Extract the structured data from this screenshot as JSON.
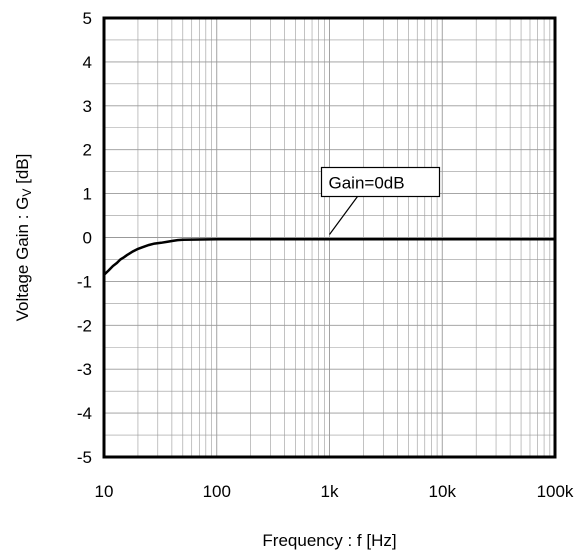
{
  "chart_data": {
    "type": "line",
    "xscale": "log",
    "xlim": [
      10,
      100000
    ],
    "ylim": [
      -5,
      5
    ],
    "xlabel": "Frequency : f [Hz]",
    "ylabel_main": "Voltage Gain : G",
    "ylabel_sub": "V",
    "ylabel_unit": " [dB]",
    "xticks": [
      10,
      100,
      1000,
      10000,
      100000
    ],
    "xtick_labels": [
      "10",
      "100",
      "1k",
      "10k",
      "100k"
    ],
    "yticks": [
      -5,
      -4,
      -3,
      -2,
      -1,
      0,
      1,
      2,
      3,
      4,
      5
    ],
    "ytick_labels": [
      "-5",
      "-4",
      "-3",
      "-2",
      "-1",
      "0",
      "1",
      "2",
      "3",
      "4",
      "5"
    ],
    "grid": true,
    "annotation": {
      "text": "Gain=0dB",
      "x": 1000,
      "y": 0
    },
    "series": [
      {
        "x": [
          10,
          11,
          12,
          13,
          14,
          15,
          16,
          18,
          20,
          22,
          25,
          28,
          32,
          36,
          40,
          45,
          50,
          100,
          1000,
          10000,
          100000
        ],
        "y": [
          -0.85,
          -0.75,
          -0.65,
          -0.58,
          -0.5,
          -0.45,
          -0.4,
          -0.32,
          -0.26,
          -0.22,
          -0.17,
          -0.14,
          -0.12,
          -0.1,
          -0.08,
          -0.06,
          -0.05,
          -0.04,
          -0.04,
          -0.04,
          -0.04
        ]
      }
    ]
  }
}
